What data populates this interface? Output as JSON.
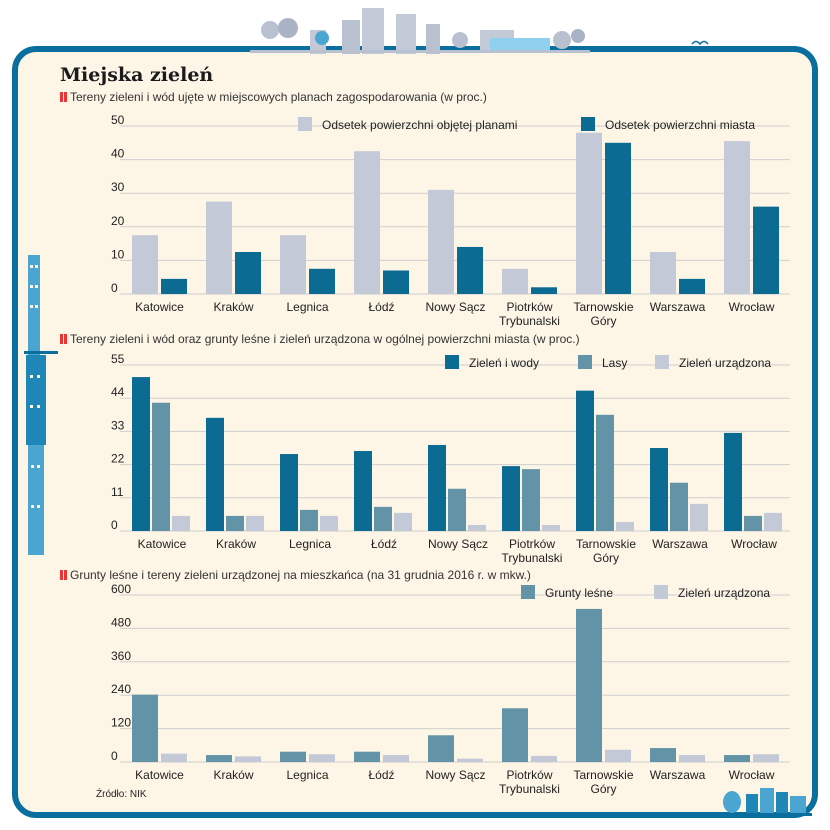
{
  "title": "Miejska zieleń",
  "source": "Źródło: NIK",
  "colors": {
    "frame": "#0a6f9e",
    "background": "#fdf6e7"
  },
  "chart_data": [
    {
      "type": "bar",
      "subtitle": "Tereny zieleni i wód ujęte w miejscowych planach zagospodarowania (w proc.)",
      "categories": [
        "Katowice",
        "Kraków",
        "Legnica",
        "Łódź",
        "Nowy Sącz",
        "Piotrków Trybunalski",
        "Tarnowskie Góry",
        "Warszawa",
        "Wrocław"
      ],
      "series": [
        {
          "name": "Odsetek powierzchni objętej planami",
          "color": "#c4c9d7",
          "values": [
            17.5,
            27.5,
            17.5,
            42.5,
            31,
            7.5,
            48,
            12.5,
            45.5
          ]
        },
        {
          "name": "Odsetek powierzchni miasta",
          "color": "#0b6b92",
          "values": [
            4.5,
            12.5,
            7.5,
            7,
            14,
            2,
            45,
            4.5,
            26
          ]
        }
      ],
      "yticks": [
        0,
        10,
        20,
        30,
        40,
        50
      ],
      "ylim": [
        0,
        50
      ],
      "grid": true,
      "legend": "top"
    },
    {
      "type": "bar",
      "subtitle": "Tereny zieleni i wód oraz grunty leśne i zieleń urządzona w ogólnej powierzchni miasta (w proc.)",
      "categories": [
        "Katowice",
        "Kraków",
        "Legnica",
        "Łódź",
        "Nowy Sącz",
        "Piotrków Trybunalski",
        "Tarnowskie Góry",
        "Warszawa",
        "Wrocław"
      ],
      "series": [
        {
          "name": "Zieleń i wody",
          "color": "#0b6b92",
          "values": [
            51,
            37.5,
            25.5,
            26.5,
            28.5,
            21.5,
            46.5,
            27.5,
            32.5
          ]
        },
        {
          "name": "Lasy",
          "color": "#6293a6",
          "values": [
            42.5,
            5,
            7,
            8,
            14,
            20.5,
            38.5,
            16,
            5
          ]
        },
        {
          "name": "Zieleń urządzona",
          "color": "#c4c9d7",
          "values": [
            5,
            5,
            5,
            6,
            2,
            2,
            3,
            9,
            6
          ]
        }
      ],
      "yticks": [
        0,
        11,
        22,
        33,
        44,
        55
      ],
      "ylim": [
        0,
        55
      ],
      "grid": true,
      "legend": "top"
    },
    {
      "type": "bar",
      "subtitle": "Grunty leśne i tereny zieleni urządzonej na mieszkańca (na 31 grudnia 2016 r. w mkw.)",
      "categories": [
        "Katowice",
        "Kraków",
        "Legnica",
        "Łódź",
        "Nowy Sącz",
        "Piotrków Trybunalski",
        "Tarnowskie Góry",
        "Warszawa",
        "Wrocław"
      ],
      "series": [
        {
          "name": "Grunty leśne",
          "color": "#6293a6",
          "values": [
            242,
            25,
            37,
            37,
            96,
            193,
            550,
            50,
            25
          ]
        },
        {
          "name": "Zieleń urządzona",
          "color": "#c4c9d7",
          "values": [
            30,
            20,
            28,
            25,
            12,
            22,
            44,
            25,
            28
          ]
        }
      ],
      "yticks": [
        0,
        120,
        240,
        360,
        480,
        600
      ],
      "ylim": [
        0,
        600
      ],
      "grid": true,
      "legend": "top"
    }
  ]
}
